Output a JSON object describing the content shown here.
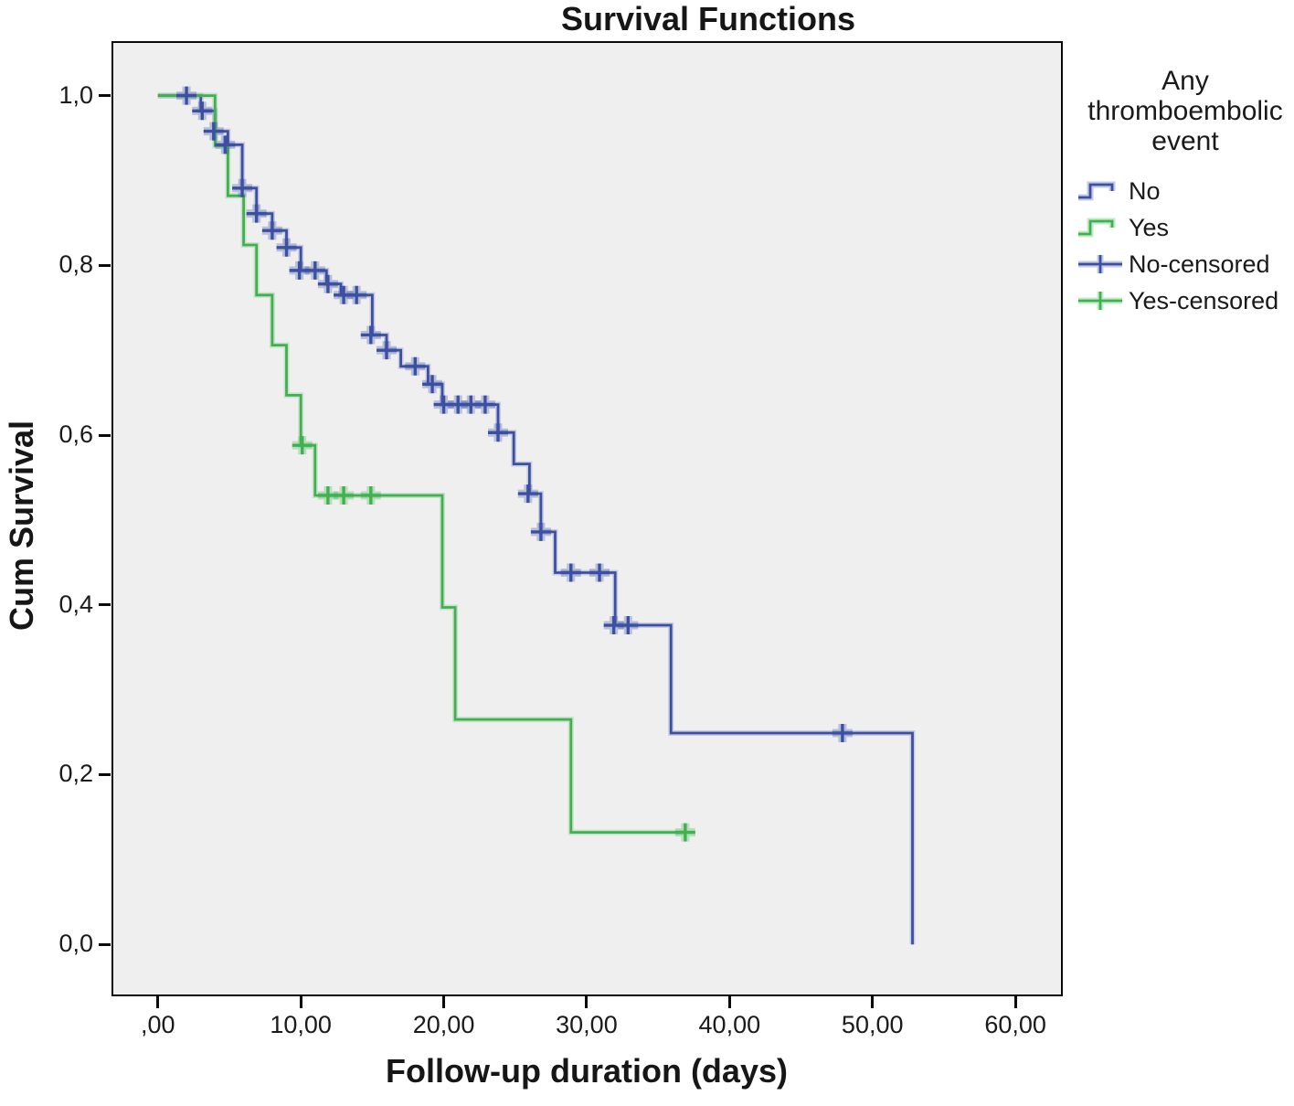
{
  "chart_data": {
    "type": "line",
    "subtype": "kaplan-meier-step",
    "title": "Survival Functions",
    "xlabel": "Follow-up duration (days)",
    "ylabel": "Cum Survival",
    "decimal_separator": ",",
    "xlim": [
      -3.12,
      63.19
    ],
    "ylim": [
      -0.059,
      1.062
    ],
    "grid": false,
    "plot_background": "#f0efef",
    "axis_color": "#0a0a0a",
    "text_color": "#1a1a1a",
    "x_ticks": [
      {
        "value": 0,
        "label": ",00"
      },
      {
        "value": 10,
        "label": "10,00"
      },
      {
        "value": 20,
        "label": "20,00"
      },
      {
        "value": 30,
        "label": "30,00"
      },
      {
        "value": 40,
        "label": "40,00"
      },
      {
        "value": 50,
        "label": "50,00"
      },
      {
        "value": 60,
        "label": "60,00"
      }
    ],
    "y_ticks": [
      {
        "value": 1.0,
        "label": "1,0"
      },
      {
        "value": 0.8,
        "label": "0,8"
      },
      {
        "value": 0.6,
        "label": "0,6"
      },
      {
        "value": 0.4,
        "label": "0,4"
      },
      {
        "value": 0.2,
        "label": "0,2"
      },
      {
        "value": 0.0,
        "label": "0,0"
      }
    ],
    "series": [
      {
        "name": "No",
        "color": "#3c50a3",
        "steps": [
          [
            0,
            1.0
          ],
          [
            3.0,
            0.982
          ],
          [
            4.0,
            0.958
          ],
          [
            4.9,
            0.942
          ],
          [
            5.9,
            0.891
          ],
          [
            6.9,
            0.861
          ],
          [
            8.0,
            0.841
          ],
          [
            9.0,
            0.821
          ],
          [
            10.0,
            0.794
          ],
          [
            11.8,
            0.778
          ],
          [
            12.8,
            0.765
          ],
          [
            15.0,
            0.718
          ],
          [
            16.0,
            0.7
          ],
          [
            17.0,
            0.681
          ],
          [
            18.9,
            0.66
          ],
          [
            19.9,
            0.636
          ],
          [
            23.8,
            0.603
          ],
          [
            24.9,
            0.566
          ],
          [
            26.0,
            0.531
          ],
          [
            26.8,
            0.486
          ],
          [
            27.8,
            0.438
          ],
          [
            32.0,
            0.376
          ],
          [
            35.9,
            0.249
          ],
          [
            52.8,
            0.0
          ]
        ],
        "end_time": 52.8,
        "censored": [
          [
            2.0,
            1.0
          ],
          [
            3.1,
            0.982
          ],
          [
            3.9,
            0.958
          ],
          [
            4.7,
            0.942
          ],
          [
            5.9,
            0.891
          ],
          [
            6.9,
            0.861
          ],
          [
            8.0,
            0.841
          ],
          [
            9.0,
            0.821
          ],
          [
            9.9,
            0.794
          ],
          [
            11.0,
            0.794
          ],
          [
            11.9,
            0.778
          ],
          [
            13.0,
            0.765
          ],
          [
            13.9,
            0.765
          ],
          [
            14.9,
            0.718
          ],
          [
            16.0,
            0.7
          ],
          [
            18.0,
            0.681
          ],
          [
            19.2,
            0.66
          ],
          [
            20.0,
            0.636
          ],
          [
            21.0,
            0.636
          ],
          [
            21.9,
            0.636
          ],
          [
            22.9,
            0.636
          ],
          [
            23.8,
            0.603
          ],
          [
            25.9,
            0.531
          ],
          [
            26.8,
            0.486
          ],
          [
            28.9,
            0.438
          ],
          [
            30.9,
            0.438
          ],
          [
            31.9,
            0.376
          ],
          [
            32.9,
            0.376
          ],
          [
            47.9,
            0.249
          ]
        ]
      },
      {
        "name": "Yes",
        "color": "#3fb24f",
        "steps": [
          [
            0,
            1.0
          ],
          [
            4.0,
            0.941
          ],
          [
            4.9,
            0.882
          ],
          [
            6.0,
            0.824
          ],
          [
            6.9,
            0.765
          ],
          [
            8.0,
            0.706
          ],
          [
            9.0,
            0.647
          ],
          [
            10.0,
            0.588
          ],
          [
            11.0,
            0.529
          ],
          [
            19.9,
            0.397
          ],
          [
            20.8,
            0.265
          ],
          [
            28.9,
            0.132
          ]
        ],
        "end_time": 36.9,
        "censored": [
          [
            10.1,
            0.588
          ],
          [
            11.9,
            0.529
          ],
          [
            13.0,
            0.529
          ],
          [
            14.9,
            0.529
          ],
          [
            36.9,
            0.132
          ]
        ]
      }
    ]
  },
  "legend": {
    "title": "Any thromboembolic event",
    "items": [
      {
        "label": "No",
        "glyph": "step-line",
        "color": "#3c50a3"
      },
      {
        "label": "Yes",
        "glyph": "step-line",
        "color": "#3fb24f"
      },
      {
        "label": "No-censored",
        "glyph": "plus-line",
        "color": "#3c50a3"
      },
      {
        "label": "Yes-censored",
        "glyph": "plus-line",
        "color": "#3fb24f"
      }
    ]
  }
}
